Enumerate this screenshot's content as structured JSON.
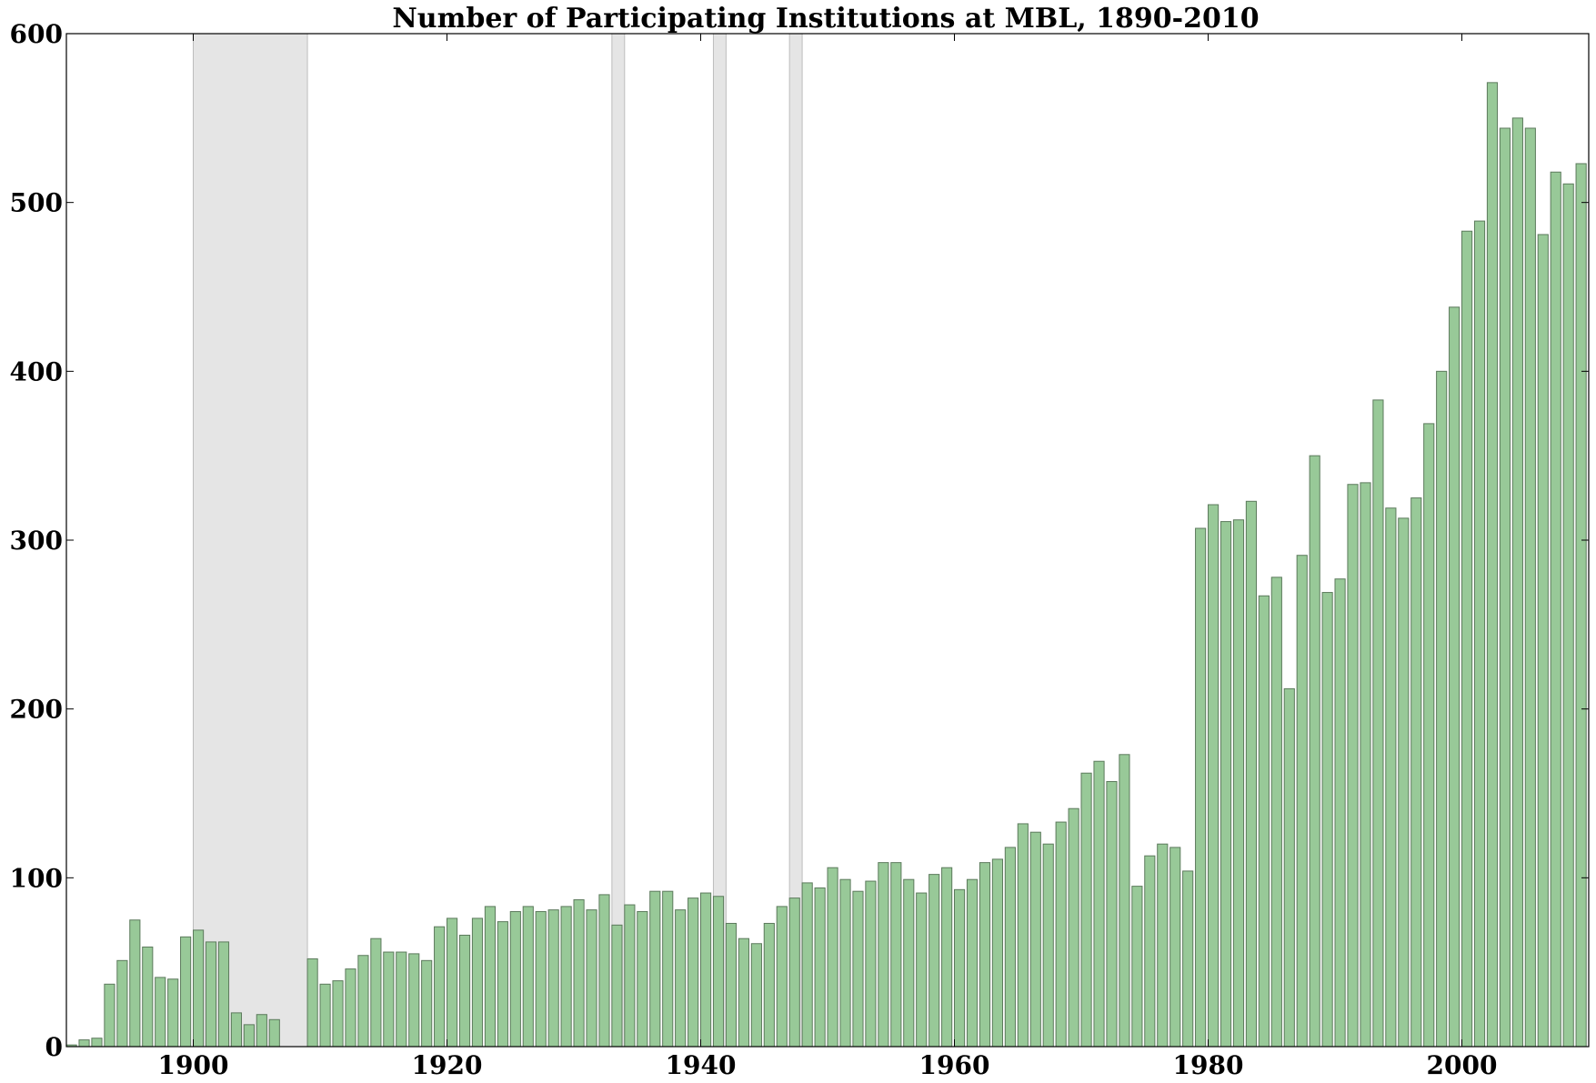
{
  "chart_data": {
    "type": "bar",
    "title": "Number of Participating Institutions at MBL, 1890-2010",
    "xlabel": "",
    "ylabel": "",
    "xlim": [
      1890,
      2010
    ],
    "ylim": [
      0,
      600
    ],
    "xticks": [
      1900,
      1920,
      1940,
      1960,
      1980,
      2000
    ],
    "yticks": [
      0,
      100,
      200,
      300,
      400,
      500,
      600
    ],
    "grid": false,
    "shaded_periods": [
      {
        "start": 1900,
        "end": 1909
      },
      {
        "start": 1933,
        "end": 1934
      },
      {
        "start": 1941,
        "end": 1942
      },
      {
        "start": 1947,
        "end": 1948
      }
    ],
    "x": [
      1890,
      1891,
      1892,
      1893,
      1894,
      1895,
      1896,
      1897,
      1898,
      1899,
      1900,
      1901,
      1902,
      1903,
      1904,
      1905,
      1906,
      1907,
      1908,
      1909,
      1910,
      1911,
      1912,
      1913,
      1914,
      1915,
      1916,
      1917,
      1918,
      1919,
      1920,
      1921,
      1922,
      1923,
      1924,
      1925,
      1926,
      1927,
      1928,
      1929,
      1930,
      1931,
      1932,
      1933,
      1934,
      1935,
      1936,
      1937,
      1938,
      1939,
      1940,
      1941,
      1942,
      1943,
      1944,
      1945,
      1946,
      1947,
      1948,
      1949,
      1950,
      1951,
      1952,
      1953,
      1954,
      1955,
      1956,
      1957,
      1958,
      1959,
      1960,
      1961,
      1962,
      1963,
      1964,
      1965,
      1966,
      1967,
      1968,
      1969,
      1970,
      1971,
      1972,
      1973,
      1974,
      1975,
      1976,
      1977,
      1978,
      1979,
      1980,
      1981,
      1982,
      1983,
      1984,
      1985,
      1986,
      1987,
      1988,
      1989,
      1990,
      1991,
      1992,
      1993,
      1994,
      1995,
      1996,
      1997,
      1998,
      1999,
      2000,
      2001,
      2002,
      2003,
      2004,
      2005,
      2006,
      2007,
      2008,
      2009
    ],
    "values": [
      1,
      4,
      5,
      37,
      51,
      75,
      59,
      41,
      40,
      65,
      69,
      62,
      62,
      20,
      13,
      19,
      16,
      0,
      0,
      52,
      37,
      39,
      46,
      54,
      64,
      56,
      56,
      55,
      51,
      71,
      76,
      66,
      76,
      83,
      74,
      80,
      83,
      80,
      81,
      83,
      87,
      81,
      90,
      72,
      84,
      80,
      92,
      92,
      81,
      88,
      91,
      89,
      73,
      64,
      61,
      73,
      83,
      88,
      97,
      94,
      106,
      99,
      92,
      98,
      109,
      109,
      99,
      91,
      102,
      106,
      93,
      99,
      109,
      111,
      118,
      132,
      127,
      120,
      133,
      141,
      162,
      169,
      157,
      173,
      95,
      113,
      120,
      118,
      104,
      307,
      321,
      311,
      312,
      323,
      267,
      278,
      212,
      291,
      350,
      269,
      277,
      333,
      334,
      383,
      319,
      313,
      325,
      369,
      400,
      438,
      483,
      489,
      571,
      544,
      550,
      544,
      481,
      518,
      511,
      523
    ]
  }
}
